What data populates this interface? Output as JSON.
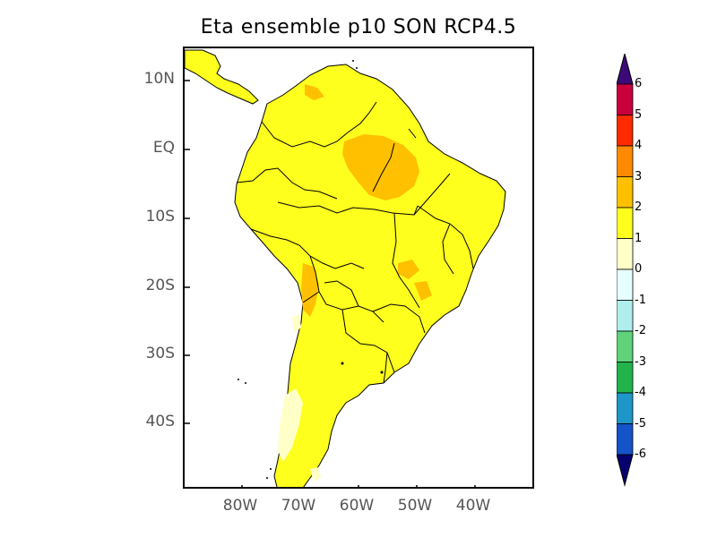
{
  "title": "Eta ensemble p10 SON RCP4.5",
  "lat_labels": [
    "10N",
    "EQ",
    "10S",
    "20S",
    "30S",
    "40S"
  ],
  "lon_labels": [
    "80W",
    "70W",
    "60W",
    "50W",
    "40W"
  ],
  "colorbar": {
    "ticks": [
      "6",
      "5",
      "4",
      "3",
      "2",
      "1",
      "0",
      "-1",
      "-2",
      "-3",
      "-4",
      "-5",
      "-6"
    ],
    "colors": [
      "#7a0060",
      "#c8003c",
      "#ff2a00",
      "#ff8a00",
      "#ffc000",
      "#ffff1e",
      "#ffffc8",
      "#e6ffff",
      "#b0eded",
      "#5fd27a",
      "#22b34a",
      "#1e96c8",
      "#1454c8"
    ],
    "top_arrow_color": "#3c0a78",
    "bottom_arrow_color": "#06006e"
  },
  "map_colors": {
    "land_main": "#ffff1e",
    "land_warm": "#ffc000",
    "land_cool": "#ffffc8",
    "ocean": "#ffffff",
    "borders": "#000000"
  }
}
